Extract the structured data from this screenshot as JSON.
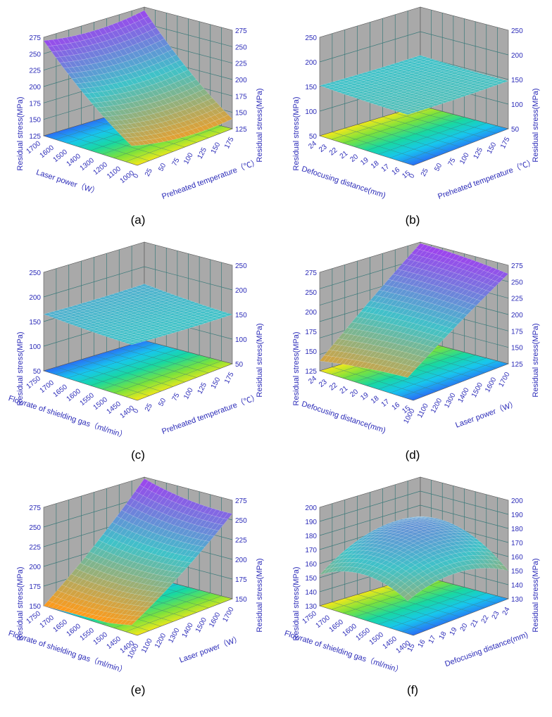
{
  "panel_letters": [
    "(a)",
    "(b)",
    "(c)",
    "(d)",
    "(e)",
    "(f)"
  ],
  "colors": {
    "axis_text": "#2b2bb8",
    "wall": "#a9a9a9",
    "wall_grid": "#3c7a7a",
    "surface_low": "#ff9a1a",
    "surface_mid": "#3fc2c8",
    "surface_high": "#a23cf0"
  },
  "chart_data": [
    {
      "panel": "(a)",
      "type": "surface3d",
      "zlabel": "Residual stress(MPa)",
      "xlabel": "Laser power（W）",
      "ylabel": "Preheated temperature（℃）",
      "zticks": [
        "275",
        "250",
        "225",
        "200",
        "175",
        "150",
        "125"
      ],
      "left_z_ticks": [
        "275",
        "250",
        "225",
        "200",
        "175",
        "150",
        "125"
      ],
      "xticks": [
        "1700",
        "1600",
        "1500",
        "1400",
        "1300",
        "1200",
        "1100",
        "1000"
      ],
      "yticks": [
        "0",
        "25",
        "50",
        "75",
        "100",
        "125",
        "150",
        "175"
      ],
      "zlim": [
        125,
        275
      ],
      "corners": {
        "back_left": 270,
        "left": 270,
        "front": 145,
        "right": 140,
        "bowl": 0.35
      }
    },
    {
      "panel": "(b)",
      "type": "surface3d",
      "zlabel": "Residual stress(MPa)",
      "xlabel": "Defocusing distance(mm)",
      "ylabel": "Preheated temperature（℃）",
      "zticks": [
        "250",
        "200",
        "150",
        "100",
        "50"
      ],
      "left_z_ticks": [
        "250",
        "200",
        "150",
        "100",
        "50"
      ],
      "xticks": [
        "24",
        "23",
        "22",
        "21",
        "20",
        "19",
        "18",
        "17",
        "16",
        "15"
      ],
      "yticks": [
        "0",
        "25",
        "50",
        "75",
        "100",
        "125",
        "150",
        "175"
      ],
      "zlim": [
        50,
        250
      ],
      "corners": {
        "back_left": 152,
        "left": 152,
        "front": 140,
        "right": 147,
        "bowl": 0.04
      }
    },
    {
      "panel": "(c)",
      "type": "surface3d",
      "zlabel": "Residual stress(MPa)",
      "xlabel": "Flowrate of shielding gas（ml/min）",
      "ylabel": "Preheated temperature（℃）",
      "zticks": [
        "250",
        "200",
        "150",
        "100",
        "50"
      ],
      "left_z_ticks": [
        "250",
        "200",
        "150",
        "100",
        "50"
      ],
      "xticks": [
        "1750",
        "1700",
        "1650",
        "1600",
        "1550",
        "1500",
        "1450",
        "1400"
      ],
      "yticks": [
        "0",
        "25",
        "50",
        "75",
        "100",
        "125",
        "150",
        "175"
      ],
      "zlim": [
        50,
        250
      ],
      "corners": {
        "back_left": 165,
        "left": 165,
        "front": 150,
        "right": 150,
        "bowl": 0.05
      }
    },
    {
      "panel": "(d)",
      "type": "surface3d",
      "zlabel": "Residual stress(MPa)",
      "xlabel": "Defocusing distance(mm)",
      "ylabel": "Laser power（W）",
      "zticks": [
        "275",
        "250",
        "225",
        "200",
        "175",
        "150",
        "125"
      ],
      "left_z_ticks": [
        "275",
        "250",
        "200",
        "175",
        "150",
        "125"
      ],
      "xticks": [
        "24",
        "23",
        "22",
        "21",
        "20",
        "19",
        "18",
        "17",
        "16",
        "15"
      ],
      "yticks": [
        "1000",
        "1100",
        "1200",
        "1300",
        "1400",
        "1500",
        "1600",
        "1700"
      ],
      "zlim": [
        125,
        275
      ],
      "corners": {
        "back_left": 273,
        "left": 140,
        "front": 150,
        "right": 262,
        "bowl": -0.1
      }
    },
    {
      "panel": "(e)",
      "type": "surface3d",
      "zlabel": "Residual stress(MPa)",
      "xlabel": "Flowrate of shielding gas（ml/min）",
      "ylabel": "Laser power（W）",
      "zticks": [
        "275",
        "250",
        "225",
        "200",
        "175",
        "150"
      ],
      "left_z_ticks": [
        "275",
        "250",
        "225",
        "200",
        "175",
        "150"
      ],
      "xticks": [
        "1750",
        "1700",
        "1650",
        "1600",
        "1550",
        "1500",
        "1450",
        "1400"
      ],
      "yticks": [
        "1000",
        "1100",
        "1200",
        "1300",
        "1400",
        "1500",
        "1600",
        "1700"
      ],
      "zlim": [
        150,
        275
      ],
      "corners": {
        "back_left": 273,
        "left": 150,
        "front": 155,
        "right": 258,
        "bowl": 0.25
      }
    },
    {
      "panel": "(f)",
      "type": "surface3d",
      "zlabel": "Residual stress(MPa)",
      "xlabel": "Flowrate of shielding gas（ml/min）",
      "ylabel": "Defocusing distance(mm)",
      "zticks": [
        "200",
        "190",
        "180",
        "170",
        "160",
        "150",
        "140",
        "130"
      ],
      "left_z_ticks": [
        "200",
        "190",
        "180",
        "170",
        "160",
        "150",
        "140",
        "130"
      ],
      "xticks": [
        "1750",
        "1700",
        "1650",
        "1600",
        "1550",
        "1500",
        "1450",
        "1400"
      ],
      "yticks": [
        "15",
        "16",
        "17",
        "18",
        "19",
        "20",
        "21",
        "22",
        "23",
        "24"
      ],
      "zlim": [
        130,
        200
      ],
      "corners": {
        "back_left": 172,
        "left": 152,
        "front": 150,
        "right": 150,
        "bowl": -0.9
      }
    }
  ]
}
